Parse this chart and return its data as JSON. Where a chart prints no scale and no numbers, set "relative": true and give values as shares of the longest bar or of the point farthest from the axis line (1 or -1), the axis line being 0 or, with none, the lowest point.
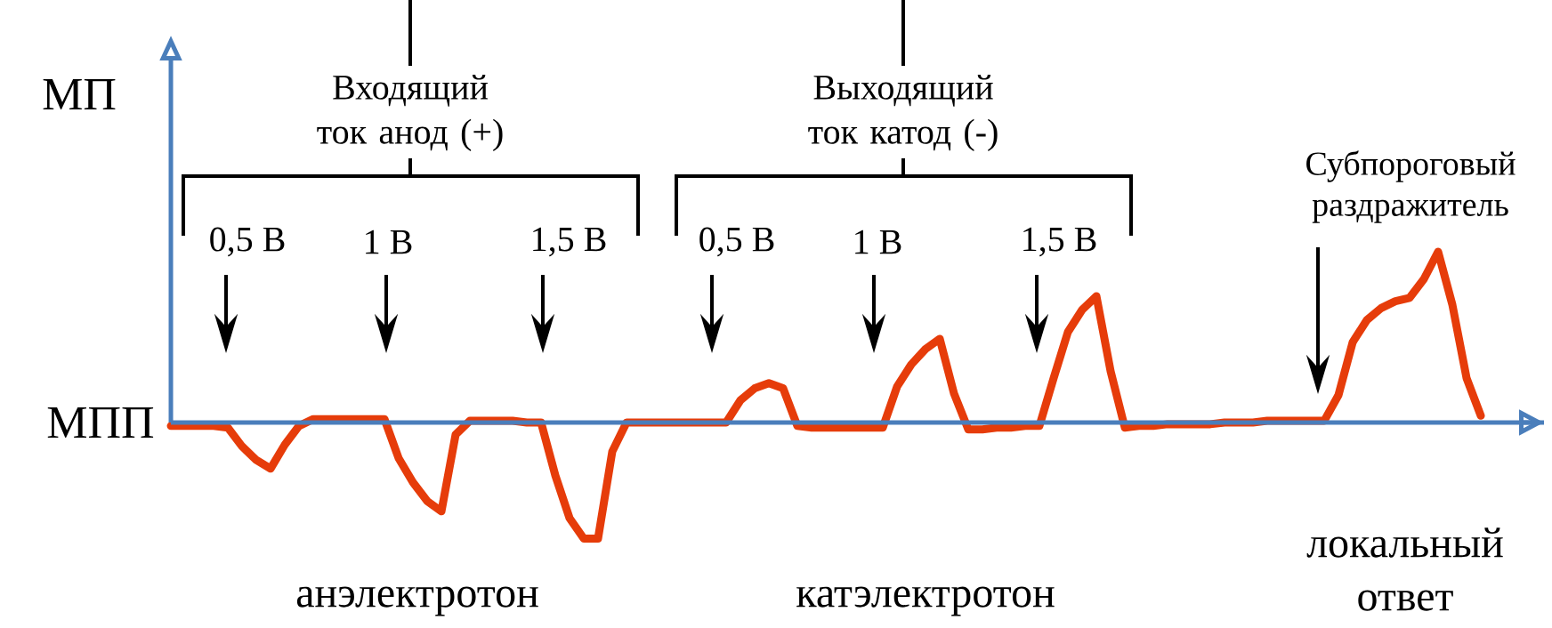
{
  "chart_data": {
    "type": "line",
    "relative": true,
    "ylabel": "МП",
    "marker": "none",
    "line_style": "solid",
    "categories": [
      null,
      null,
      null,
      null,
      null,
      null,
      null,
      null,
      null,
      null,
      null,
      null,
      null,
      null,
      null,
      null,
      null,
      null,
      null,
      null,
      null,
      null,
      null,
      null,
      null,
      null,
      null,
      null,
      null,
      null,
      null,
      null,
      null,
      null,
      null,
      null,
      null,
      null,
      null,
      null,
      null,
      null,
      null,
      null,
      null,
      null,
      null,
      null,
      null,
      null,
      null,
      null,
      null,
      null,
      null,
      null,
      null,
      null,
      null,
      null,
      null,
      null,
      null,
      null,
      null,
      null,
      null,
      null,
      null,
      null,
      null,
      null,
      null,
      null,
      null,
      null,
      null,
      null,
      null,
      null,
      null,
      null,
      null,
      null,
      null,
      null,
      null,
      null,
      null,
      null,
      null,
      null,
      null
    ],
    "series": [
      {
        "color": "#e63c0a",
        "values": [
          -0.02,
          -0.02,
          -0.02,
          -0.02,
          -0.03,
          -0.14,
          -0.22,
          -0.27,
          -0.13,
          -0.02,
          0.02,
          0.02,
          0.02,
          0.02,
          0.02,
          0.02,
          -0.21,
          -0.35,
          -0.46,
          -0.52,
          -0.07,
          0.01,
          0.01,
          0.01,
          0.01,
          0,
          0,
          -0.31,
          -0.56,
          -0.68,
          -0.68,
          -0.17,
          0,
          0,
          0,
          0,
          0,
          0,
          0,
          0,
          0.13,
          0.2,
          0.23,
          0.2,
          -0.02,
          -0.03,
          -0.03,
          -0.03,
          -0.03,
          -0.03,
          -0.03,
          0.21,
          0.34,
          0.43,
          0.49,
          0.17,
          -0.04,
          -0.04,
          -0.03,
          -0.03,
          -0.02,
          -0.02,
          0.26,
          0.53,
          0.66,
          0.74,
          0.3,
          -0.03,
          -0.02,
          -0.02,
          -0.01,
          -0.01,
          -0.01,
          -0.01,
          0,
          0,
          0,
          0.01,
          0.01,
          0.01,
          0.01,
          0.01,
          0.16,
          0.47,
          0.6,
          0.67,
          0.71,
          0.73,
          0.84,
          1,
          0.69,
          0.26,
          0.04
        ]
      }
    ],
    "ref_lines": [
      {
        "axis": "y",
        "value": 0,
        "label": "МПП",
        "color": "#4a7ebb"
      }
    ],
    "annotations": [
      "Входящий ток анод (+)",
      "Выходящий ток катод (-)",
      "0,5 В",
      "1 В",
      "1,5 В",
      "0,5 В",
      "1 В",
      "1,5 В",
      "Субпороговый раздражитель",
      "анэлектротон",
      "катэлектротон",
      "локальный ответ"
    ]
  }
}
